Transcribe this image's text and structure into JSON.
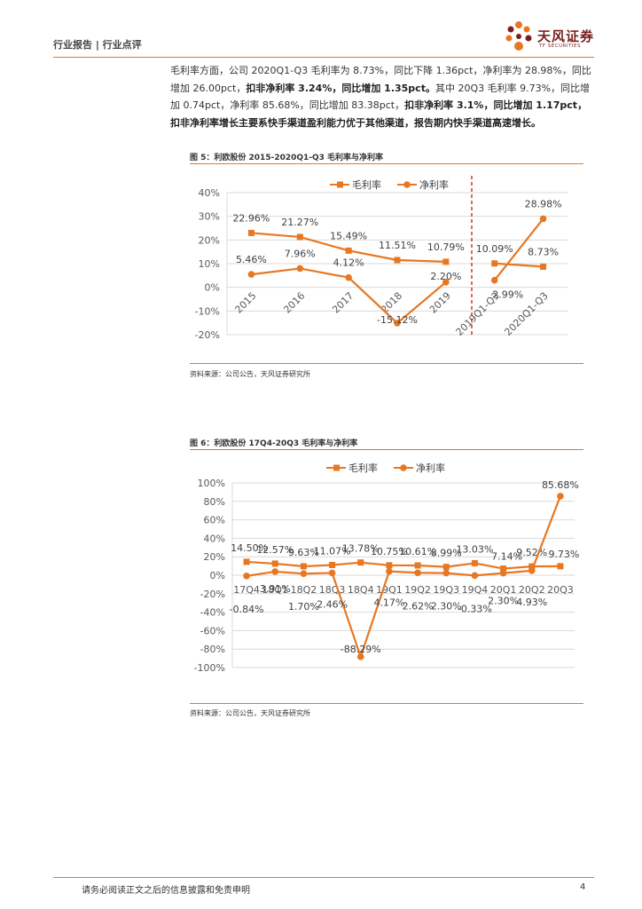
{
  "header": {
    "section": "行业报告 | 行业点评",
    "logo_cn": "天风证券",
    "logo_en": "TF SECURITIES"
  },
  "body": {
    "segments": [
      {
        "text": "毛利率方面，公司 2020Q1-Q3 毛利率为 8.73%，同比下降 1.36pct，净利率为 28.98%，同比增加 26.00pct，",
        "bold": false
      },
      {
        "text": "扣非净利率 3.24%，同比增加 1.35pct。",
        "bold": true
      },
      {
        "text": "其中 20Q3 毛利率 9.73%，同比增加 0.74pct，净利率 85.68%，同比增加 83.38pct，",
        "bold": false
      },
      {
        "text": "扣非净利率 3.1%，同比增加 1.17pct，扣非净利率增长主要系快手渠道盈利能力优于其他渠道，报告期内快手渠道高速增长。",
        "bold": true
      }
    ]
  },
  "figure5": {
    "title": "图 5：利欧股份 2015-2020Q1-Q3 毛利率与净利率",
    "source": "资料来源：公司公告，天风证券研究所"
  },
  "figure6": {
    "title": "图 6：利欧股份 17Q4-20Q3 毛利率与净利率",
    "source": "资料来源：公司公告，天风证券研究所"
  },
  "colors": {
    "accent": "#e87722",
    "divider": "#cc0000",
    "grid": "#d9d9d9",
    "brand": "#7a1f1f"
  },
  "chart_data": [
    {
      "type": "line",
      "title": "利欧股份 2015-2020Q1-Q3 毛利率与净利率",
      "categories": [
        "2015",
        "2016",
        "2017",
        "2018",
        "2019",
        "2019Q1-Q3",
        "2020Q1-Q3"
      ],
      "y_ticks": [
        "40%",
        "30%",
        "20%",
        "10%",
        "0%",
        "-10%",
        "-20%"
      ],
      "ylim": [
        -20,
        40
      ],
      "legend_position": "top-center",
      "segments": [
        [
          0,
          4
        ],
        [
          5,
          6
        ]
      ],
      "series": [
        {
          "name": "毛利率",
          "marker": "square",
          "values": [
            22.96,
            21.27,
            15.49,
            11.51,
            10.79,
            10.09,
            8.73
          ],
          "labels": [
            "22.96%",
            "21.27%",
            "15.49%",
            "11.51%",
            "10.79%",
            "10.09%",
            "8.73%"
          ]
        },
        {
          "name": "净利率",
          "marker": "circle",
          "values": [
            5.46,
            7.96,
            4.12,
            -15.12,
            2.2,
            2.99,
            28.98
          ],
          "labels": [
            "5.46%",
            "7.96%",
            "4.12%",
            "-15.12%",
            "2.20%",
            "2.99%",
            "28.98%"
          ]
        }
      ]
    },
    {
      "type": "line",
      "title": "利欧股份 17Q4-20Q3 毛利率与净利率",
      "categories": [
        "17Q4",
        "18Q1",
        "18Q2",
        "18Q3",
        "18Q4",
        "19Q1",
        "19Q2",
        "19Q3",
        "19Q4",
        "20Q1",
        "20Q2",
        "20Q3"
      ],
      "y_ticks": [
        "100%",
        "80%",
        "60%",
        "40%",
        "20%",
        "0%",
        "-20%",
        "-40%",
        "-60%",
        "-80%",
        "-100%"
      ],
      "ylim": [
        -100,
        100
      ],
      "legend_position": "top-center",
      "segments": [
        [
          0,
          11
        ]
      ],
      "series": [
        {
          "name": "毛利率",
          "marker": "square",
          "values": [
            14.5,
            12.57,
            9.63,
            11.07,
            13.78,
            10.75,
            10.61,
            8.99,
            13.03,
            7.14,
            9.52,
            9.73
          ],
          "labels": [
            "14.50%",
            "12.57%",
            "9.63%",
            "11.07%",
            "13.78%",
            "10.75%",
            "10.61%",
            "8.99%",
            "13.03%",
            "7.14%",
            "9.52%",
            "9.73%"
          ]
        },
        {
          "name": "净利率",
          "marker": "circle",
          "values": [
            -0.84,
            3.91,
            1.7,
            2.46,
            -88.29,
            4.17,
            2.62,
            2.3,
            -0.33,
            2.3,
            4.93,
            85.68
          ],
          "labels": [
            "-0.84%",
            "3.91%",
            "1.70%",
            "2.46%",
            "-88.29%",
            "4.17%",
            "2.62%",
            "2.30%",
            "-0.33%",
            "2.30%",
            "4.93%",
            "85.68%"
          ]
        }
      ]
    }
  ],
  "footer": {
    "disclaimer": "请务必阅读正文之后的信息披露和免责申明",
    "page_number": "4"
  }
}
